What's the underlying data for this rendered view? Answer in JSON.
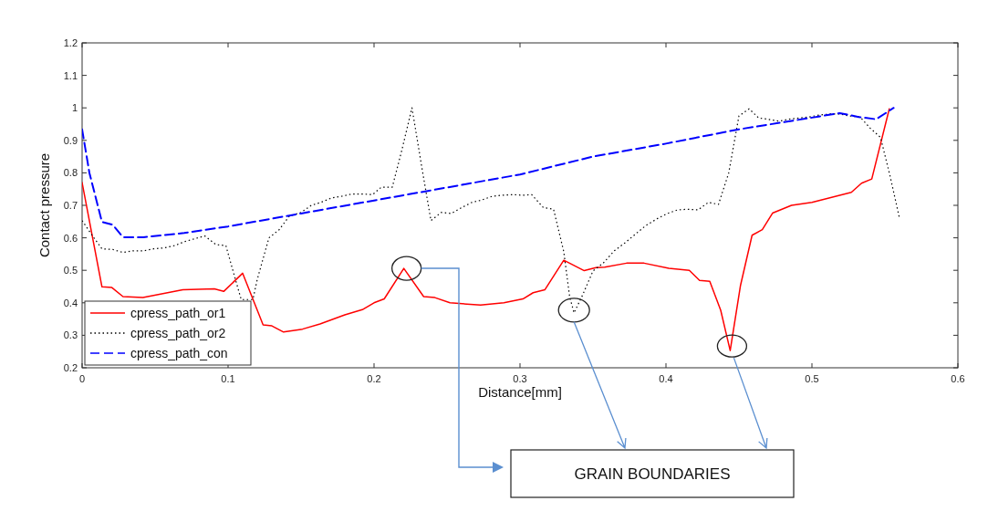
{
  "chart_data": {
    "type": "line",
    "xlabel": "Distance[mm]",
    "ylabel": "Contact pressure",
    "xlim": [
      0,
      0.6
    ],
    "xticks": [
      0,
      0.1,
      0.2,
      0.3,
      0.4,
      0.5,
      0.6
    ],
    "ylim": [
      0.2,
      1.2
    ],
    "yticks": [
      0.2,
      0.3,
      0.4,
      0.5,
      0.6,
      0.7,
      0.8,
      0.9,
      1,
      1.1,
      1.2
    ],
    "grid": false,
    "legend": "bottom left",
    "annotations": [
      "GRAIN BOUNDARIES"
    ],
    "series": [
      {
        "name": "cpress_path_or1",
        "color": "#ff0000",
        "line_style": "solid",
        "marker": "none",
        "x": [
          0,
          0.0136,
          0.0204,
          0.028,
          0.0417,
          0.069,
          0.0906,
          0.097,
          0.11,
          0.124,
          0.13,
          0.138,
          0.151,
          0.163,
          0.18,
          0.192,
          0.2,
          0.207,
          0.2204,
          0.234,
          0.2417,
          0.252,
          0.273,
          0.289,
          0.302,
          0.309,
          0.317,
          0.33,
          0.344,
          0.352,
          0.358,
          0.373,
          0.385,
          0.402,
          0.416,
          0.423,
          0.43,
          0.4375,
          0.444,
          0.451,
          0.459,
          0.466,
          0.473,
          0.486,
          0.5,
          0.527,
          0.534,
          0.541,
          0.553
        ],
        "values": [
          0.77,
          0.449,
          0.447,
          0.419,
          0.416,
          0.44,
          0.443,
          0.435,
          0.491,
          0.332,
          0.329,
          0.31,
          0.319,
          0.335,
          0.363,
          0.379,
          0.4,
          0.412,
          0.506,
          0.419,
          0.416,
          0.4,
          0.393,
          0.4,
          0.412,
          0.431,
          0.44,
          0.531,
          0.499,
          0.508,
          0.51,
          0.522,
          0.522,
          0.506,
          0.5,
          0.469,
          0.466,
          0.377,
          0.253,
          0.452,
          0.608,
          0.625,
          0.676,
          0.7,
          0.709,
          0.74,
          0.768,
          0.781,
          0.997
        ]
      },
      {
        "name": "cpress_path_or2",
        "color": "#000000",
        "line_style": "dotted",
        "x": [
          0,
          0.007,
          0.0136,
          0.021,
          0.028,
          0.035,
          0.042,
          0.049,
          0.056,
          0.0635,
          0.07,
          0.077,
          0.084,
          0.0917,
          0.0985,
          0.1056,
          0.109,
          0.117,
          0.12,
          0.128,
          0.135,
          0.142,
          0.15,
          0.157,
          0.1635,
          0.171,
          0.178,
          0.185,
          0.192,
          0.199,
          0.205,
          0.2125,
          0.219,
          0.226,
          0.233,
          0.239,
          0.246,
          0.253,
          0.26,
          0.267,
          0.2735,
          0.281,
          0.2875,
          0.295,
          0.302,
          0.308,
          0.316,
          0.323,
          0.33,
          0.334,
          0.337,
          0.343,
          0.35,
          0.357,
          0.3646,
          0.372,
          0.379,
          0.386,
          0.394,
          0.401,
          0.408,
          0.415,
          0.422,
          0.429,
          0.436,
          0.443,
          0.45,
          0.457,
          0.4635,
          0.47,
          0.4775,
          0.484,
          0.492,
          0.498,
          0.505,
          0.512,
          0.519,
          0.526,
          0.533,
          0.54,
          0.547,
          0.5535,
          0.56
        ],
        "values": [
          0.653,
          0.607,
          0.566,
          0.564,
          0.555,
          0.56,
          0.56,
          0.566,
          0.569,
          0.576,
          0.588,
          0.597,
          0.606,
          0.579,
          0.576,
          0.463,
          0.41,
          0.41,
          0.472,
          0.6,
          0.625,
          0.667,
          0.678,
          0.7,
          0.709,
          0.723,
          0.728,
          0.735,
          0.735,
          0.733,
          0.756,
          0.756,
          0.869,
          1.0,
          0.81,
          0.653,
          0.678,
          0.675,
          0.693,
          0.709,
          0.716,
          0.728,
          0.731,
          0.733,
          0.731,
          0.733,
          0.693,
          0.688,
          0.557,
          0.419,
          0.369,
          0.425,
          0.498,
          0.522,
          0.56,
          0.585,
          0.611,
          0.637,
          0.659,
          0.675,
          0.686,
          0.688,
          0.686,
          0.709,
          0.703,
          0.8,
          0.975,
          0.997,
          0.969,
          0.965,
          0.959,
          0.965,
          0.969,
          0.972,
          0.978,
          0.981,
          0.981,
          0.975,
          0.972,
          0.937,
          0.909,
          0.791,
          0.66
        ]
      },
      {
        "name": "cpress_path_con",
        "color": "#0000ff",
        "line_style": "dashed",
        "x": [
          0,
          0.005,
          0.0136,
          0.021,
          0.028,
          0.042,
          0.07,
          0.1,
          0.15,
          0.2,
          0.25,
          0.3,
          0.35,
          0.4,
          0.45,
          0.5,
          0.519,
          0.532,
          0.544,
          0.556
        ],
        "values": [
          0.934,
          0.8,
          0.649,
          0.64,
          0.602,
          0.602,
          0.615,
          0.635,
          0.675,
          0.715,
          0.755,
          0.795,
          0.85,
          0.89,
          0.934,
          0.97,
          0.984,
          0.972,
          0.965,
          1.0
        ]
      }
    ]
  }
}
